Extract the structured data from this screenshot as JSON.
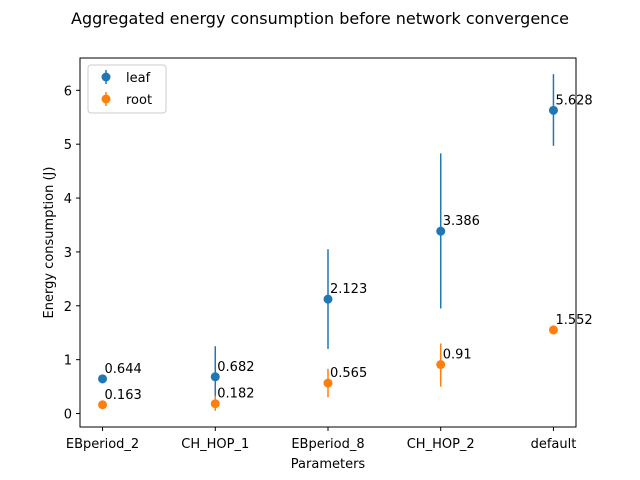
{
  "chart_data": {
    "type": "scatter",
    "title": "Aggregated energy consumption before network convergence",
    "xlabel": "Parameters",
    "ylabel": "Energy consumption (J)",
    "categories": [
      "EBperiod_2",
      "CH_HOP_1",
      "EBperiod_8",
      "CH_HOP_2",
      "default"
    ],
    "ylim": [
      -0.25,
      6.6
    ],
    "yticks": [
      0,
      1,
      2,
      3,
      4,
      5,
      6
    ],
    "grid": false,
    "legend_position": "top-left",
    "error_bars": true,
    "series": [
      {
        "name": "leaf",
        "color": "#1f77b4",
        "values": [
          0.644,
          0.682,
          2.123,
          3.386,
          5.628
        ],
        "error_low": [
          0.56,
          0.12,
          1.2,
          1.95,
          4.97
        ],
        "error_high": [
          0.72,
          1.25,
          3.05,
          4.83,
          6.3
        ],
        "labels": [
          "0.644",
          "0.682",
          "2.123",
          "3.386",
          "5.628"
        ]
      },
      {
        "name": "root",
        "color": "#ff7f0e",
        "values": [
          0.163,
          0.182,
          0.565,
          0.91,
          1.552
        ],
        "error_low": [
          0.1,
          0.05,
          0.3,
          0.5,
          1.47
        ],
        "error_high": [
          0.23,
          0.33,
          0.83,
          1.3,
          1.62
        ],
        "labels": [
          "0.163",
          "0.182",
          "0.565",
          "0.91",
          "1.552"
        ]
      }
    ]
  }
}
